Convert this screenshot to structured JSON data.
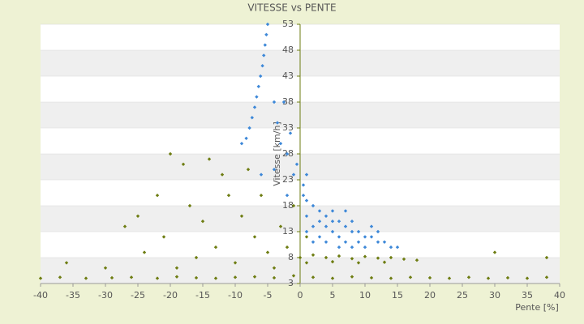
{
  "chart_data": {
    "type": "scatter",
    "title": "VITESSE vs PENTE",
    "x_label": "Pente [%]",
    "y_label": "Vitesse [km/h]",
    "xlim": [
      -40,
      40
    ],
    "ylim": [
      3,
      53
    ],
    "xticks": [
      -40,
      -35,
      -30,
      -25,
      -20,
      -15,
      -10,
      -5,
      0,
      5,
      10,
      15,
      20,
      25,
      30,
      35,
      40
    ],
    "yticks": [
      3,
      8,
      13,
      18,
      23,
      28,
      33,
      38,
      43,
      48,
      53
    ],
    "grid": true,
    "series": [
      {
        "color": "#3d88d8",
        "x": [
          -5,
          -5.2,
          -5.4,
          -5.6,
          -5.8,
          -6.1,
          -6.4,
          -6.7,
          -7,
          -7.4,
          -7.8,
          -8.3,
          -9,
          -4,
          -3.5,
          -2.5,
          -3,
          -2,
          -1.5,
          -1,
          -0.5,
          -4,
          -6,
          -2,
          0.5,
          1,
          2,
          3,
          4,
          5,
          6,
          7,
          8,
          9,
          10,
          11,
          12,
          13,
          14,
          1,
          2,
          3,
          4,
          5,
          6,
          7,
          8,
          9,
          10,
          3,
          5,
          8,
          1,
          2,
          12,
          15,
          6,
          4,
          0.5,
          1,
          7,
          11
        ],
        "y": [
          53,
          51,
          49,
          47,
          45,
          43,
          41,
          39,
          37,
          35,
          33,
          31,
          30,
          38,
          34,
          38,
          30,
          28,
          32,
          24,
          26,
          25,
          24,
          20,
          20,
          19,
          18,
          17,
          16,
          15,
          15,
          14,
          13,
          13,
          12,
          12,
          11,
          11,
          10,
          16,
          14,
          12,
          11,
          13,
          12,
          11,
          10,
          11,
          10,
          15,
          17,
          15,
          13,
          11,
          13,
          10,
          10,
          14,
          22,
          24,
          17,
          14
        ]
      },
      {
        "color": "#6e7d12",
        "x": [
          -40,
          -37,
          -33,
          -29,
          -26,
          -22,
          -19,
          -16,
          -13,
          -10,
          -7,
          -4,
          -1,
          2,
          5,
          8,
          11,
          14,
          17,
          20,
          23,
          26,
          29,
          32,
          35,
          38,
          0,
          2,
          4,
          6,
          8,
          10,
          12,
          14,
          16,
          18,
          1,
          5,
          9,
          13,
          -20,
          -18,
          -14,
          -12,
          -22,
          -25,
          -27,
          -21,
          -17,
          -15,
          -13,
          -11,
          -9,
          -7,
          -5,
          -3,
          -10,
          -16,
          -6,
          -2,
          -8,
          -24,
          -30,
          -36,
          -19,
          -4,
          1,
          -1,
          30,
          38
        ],
        "y": [
          4,
          4.2,
          4,
          4.1,
          4.2,
          4,
          4.3,
          4.1,
          4,
          4.2,
          4.3,
          4.1,
          4.5,
          4.2,
          4,
          4.3,
          4.1,
          4,
          4.2,
          4.1,
          4,
          4.2,
          4,
          4.1,
          4,
          4.2,
          8,
          8.5,
          8,
          8.3,
          7.8,
          8.2,
          7.9,
          8,
          7.7,
          7.5,
          7,
          7.2,
          7,
          7.1,
          28,
          26,
          27,
          24,
          20,
          16,
          14,
          12,
          18,
          15,
          10,
          20,
          16,
          12,
          9,
          14,
          7,
          8,
          20,
          10,
          25,
          9,
          6,
          7,
          6,
          6,
          12,
          18,
          9,
          8
        ]
      }
    ]
  }
}
